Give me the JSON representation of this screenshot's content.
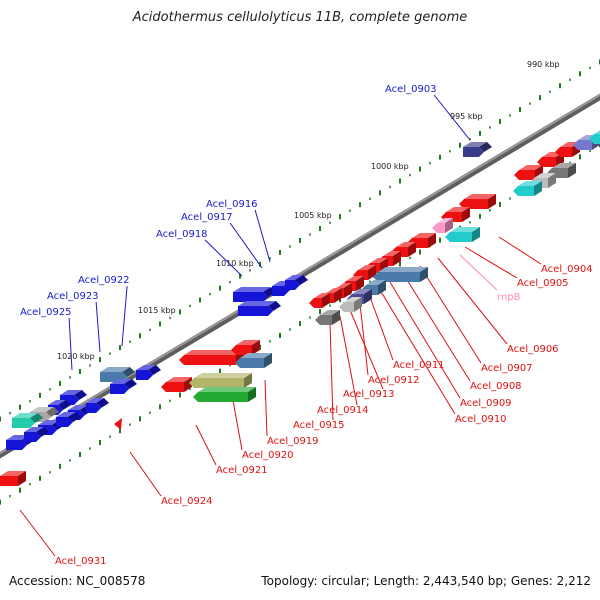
{
  "title": "Acidothermus cellulolyticus 11B, complete genome",
  "footer": {
    "accession": "Accession: NC_008578",
    "topology": "Topology: circular; Length: 2,443,540 bp; Genes: 2,212"
  },
  "colors": {
    "forward_label": "#1a1acc",
    "reverse_label": "#dd1111",
    "rna_label": "#ff88bb",
    "backbone": "#808080",
    "tick": "#1e7a1e"
  },
  "ticks": [
    "990 kbp",
    "995 kbp",
    "1000 kbp",
    "1005 kbp",
    "1010 kbp",
    "1015 kbp",
    "1020 kbp"
  ],
  "forward_labels": [
    "Acel_0903",
    "Acel_0916",
    "Acel_0917",
    "Acel_0918",
    "Acel_0922",
    "Acel_0923",
    "Acel_0925"
  ],
  "reverse_labels": [
    "Acel_0904",
    "Acel_0905",
    "Acel_0906",
    "Acel_0907",
    "Acel_0908",
    "Acel_0909",
    "Acel_0910",
    "Acel_0911",
    "Acel_0912",
    "Acel_0913",
    "Acel_0914",
    "Acel_0915",
    "Acel_0919",
    "Acel_0920",
    "Acel_0921",
    "Acel_0924",
    "Acel_0931"
  ],
  "rna_labels": [
    "rnpB"
  ]
}
